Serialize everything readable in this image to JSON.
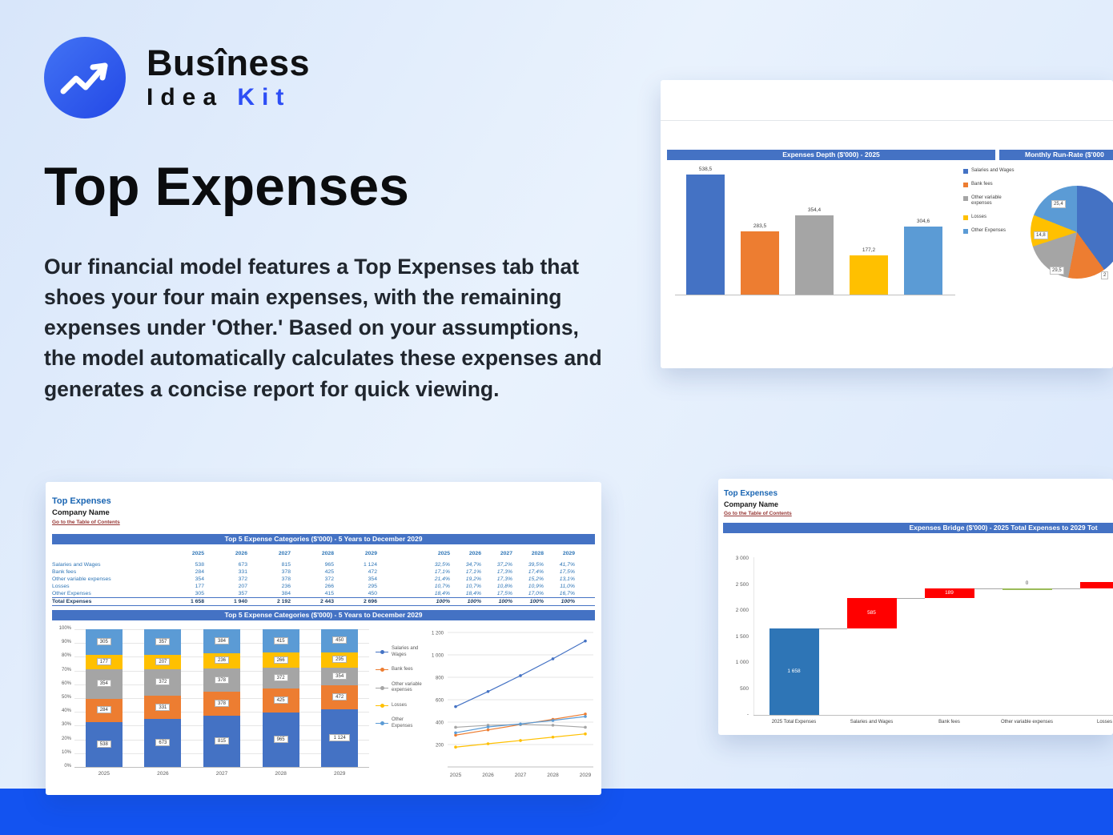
{
  "brand": {
    "name": "Busîness",
    "sub_dark": "Idea",
    "sub_accent": "Kit"
  },
  "hero": {
    "title": "Top Expenses",
    "description": "Our financial model features a Top Expenses tab that shoes your four main expenses, with the remaining expenses under 'Other.' Based on your assumptions, the model automatically calculates these expenses and generates a concise report for quick viewing."
  },
  "colors": {
    "accent": "#2d4ef5",
    "band": "#1353f0",
    "header_bar": "#4472c4",
    "link_red": "#963634",
    "sheet_title_blue": "#1b66b3",
    "waterfall_red": "#ff0000",
    "waterfall_blue": "#2e75b6"
  },
  "series": [
    {
      "name": "Salaries and Wages",
      "color": "#4472c4",
      "values": [
        538,
        673,
        815,
        965,
        1124
      ],
      "labels": [
        "538",
        "673",
        "815",
        "965",
        "1 124"
      ],
      "pct": [
        "32,5%",
        "34,7%",
        "37,2%",
        "39,5%",
        "41,7%"
      ]
    },
    {
      "name": "Bank fees",
      "color": "#ed7d31",
      "values": [
        284,
        331,
        378,
        425,
        472
      ],
      "labels": [
        "284",
        "331",
        "378",
        "425",
        "472"
      ],
      "pct": [
        "17,1%",
        "17,1%",
        "17,3%",
        "17,4%",
        "17,5%"
      ]
    },
    {
      "name": "Other variable expenses",
      "color": "#a5a5a5",
      "values": [
        354,
        372,
        378,
        372,
        354
      ],
      "labels": [
        "354",
        "372",
        "378",
        "372",
        "354"
      ],
      "pct": [
        "21,4%",
        "19,2%",
        "17,3%",
        "15,2%",
        "13,1%"
      ]
    },
    {
      "name": "Losses",
      "color": "#ffc000",
      "values": [
        177,
        207,
        236,
        266,
        295
      ],
      "labels": [
        "177",
        "207",
        "236",
        "266",
        "295"
      ],
      "pct": [
        "10,7%",
        "10,7%",
        "10,8%",
        "10,9%",
        "11,0%"
      ]
    },
    {
      "name": "Other Expenses",
      "color": "#5b9bd5",
      "values": [
        305,
        357,
        384,
        415,
        450
      ],
      "labels": [
        "305",
        "357",
        "384",
        "415",
        "450"
      ],
      "pct": [
        "18,4%",
        "18,4%",
        "17,5%",
        "17,0%",
        "16,7%"
      ]
    }
  ],
  "depth_card": {
    "bar_title": "Expenses Depth ($'000) - 2025",
    "pie_title": "Monthly Run-Rate ($'000",
    "chart_data": {
      "type": "bar",
      "categories": [
        "Salaries and Wages",
        "Bank fees",
        "Other variable expenses",
        "Losses",
        "Other Expenses"
      ],
      "values": [
        538.5,
        283.5,
        354.4,
        177.2,
        304.6
      ],
      "labels": [
        "538,5",
        "283,5",
        "354,4",
        "177,2",
        "304,6"
      ],
      "legend_position": "right",
      "grid": false
    },
    "pie_chart_data": {
      "type": "pie",
      "labels": [
        "25,4",
        "14,8",
        "29,5",
        "2"
      ],
      "slices_pct": [
        40,
        13,
        17,
        11,
        19
      ]
    }
  },
  "sheet_card": {
    "title": "Top Expenses",
    "company": "Company Name",
    "toc": "Go to the Table of Contents",
    "table_header": "Top 5 Expense Categories ($'000) - 5 Years to December 2029",
    "chart_header": "Top 5 Expense Categories ($'000) - 5 Years to December 2029",
    "years": [
      "2025",
      "2026",
      "2027",
      "2028",
      "2029"
    ],
    "total": {
      "label": "Total Expenses",
      "labels": [
        "1 658",
        "1 940",
        "2 192",
        "2 443",
        "2 696"
      ],
      "pct": [
        "100%",
        "100%",
        "100%",
        "100%",
        "100%"
      ]
    },
    "chart_data": [
      {
        "type": "bar",
        "subtype": "stacked-100pct",
        "title": "Top 5 Expense Categories ($'000) - 5 Years to December 2029",
        "categories": [
          "2025",
          "2026",
          "2027",
          "2028",
          "2029"
        ],
        "series": [
          {
            "name": "Salaries and Wages",
            "values": [
              538,
              673,
              815,
              965,
              1124
            ]
          },
          {
            "name": "Bank fees",
            "values": [
              284,
              331,
              378,
              425,
              472
            ]
          },
          {
            "name": "Other variable expenses",
            "values": [
              354,
              372,
              378,
              372,
              354
            ]
          },
          {
            "name": "Losses",
            "values": [
              177,
              207,
              236,
              266,
              295
            ]
          },
          {
            "name": "Other Expenses",
            "values": [
              305,
              357,
              384,
              415,
              450
            ]
          }
        ],
        "yticks": [
          "0%",
          "10%",
          "20%",
          "30%",
          "40%",
          "50%",
          "60%",
          "70%",
          "80%",
          "90%",
          "100%"
        ],
        "legend_position": "right",
        "grid": true
      },
      {
        "type": "line",
        "x": [
          "2025",
          "2026",
          "2027",
          "2028",
          "2029"
        ],
        "series": [
          {
            "name": "Salaries and Wages",
            "values": [
              538,
              673,
              815,
              965,
              1124
            ]
          },
          {
            "name": "Bank fees",
            "values": [
              284,
              331,
              378,
              425,
              472
            ]
          },
          {
            "name": "Other variable expenses",
            "values": [
              354,
              372,
              378,
              372,
              354
            ]
          },
          {
            "name": "Losses",
            "values": [
              177,
              207,
              236,
              266,
              295
            ]
          },
          {
            "name": "Other Expenses",
            "values": [
              305,
              357,
              384,
              415,
              450
            ]
          }
        ],
        "yticks": [
          "200",
          "400",
          "600",
          "800",
          "1 000",
          "1 200"
        ],
        "ylim": [
          0,
          1200
        ],
        "grid": true
      }
    ]
  },
  "bridge_card": {
    "title": "Top Expenses",
    "company": "Company Name",
    "toc": "Go to the Table of Contents",
    "header": "Expenses Bridge ($'000) - 2025 Total Expenses to 2029 Tot",
    "chart_data": {
      "type": "bar",
      "subtype": "waterfall",
      "categories": [
        "2025 Total Expenses",
        "Salaries and Wages",
        "Bank fees",
        "Other variable expenses",
        "Losses"
      ],
      "base": [
        0,
        1658,
        2243,
        2432,
        2432
      ],
      "values": [
        1658,
        585,
        189,
        0,
        118
      ],
      "labels": [
        "1 658",
        "585",
        "189",
        "0",
        ""
      ],
      "bar_colors": [
        "#2e75b6",
        "#ff0000",
        "#ff0000",
        "#9bbb59",
        "#ff0000"
      ],
      "yticks": [
        "3 000",
        "2 500",
        "2 000",
        "1 500",
        "1 000",
        "500",
        "-"
      ],
      "ylim": [
        0,
        3000
      ],
      "grid": false
    }
  }
}
